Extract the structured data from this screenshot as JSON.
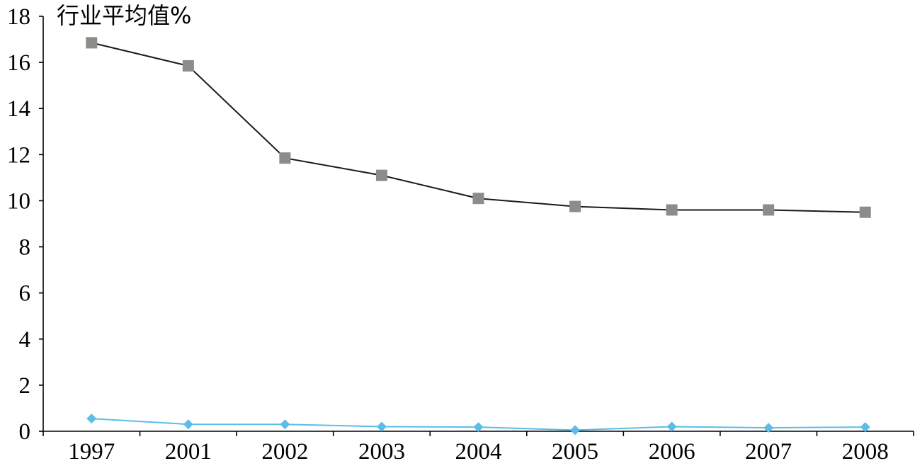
{
  "chart_data": {
    "type": "line",
    "title": "",
    "xlabel": "",
    "ylabel": "行业平均值%",
    "categories": [
      "1997",
      "2001",
      "2002",
      "2003",
      "2004",
      "2005",
      "2006",
      "2007",
      "2008"
    ],
    "ylim": [
      0,
      18
    ],
    "yticks": [
      0,
      2,
      4,
      6,
      8,
      10,
      12,
      14,
      16,
      18
    ],
    "grid": false,
    "legend": "none",
    "series": [
      {
        "values": [
          16.85,
          15.85,
          11.85,
          11.1,
          10.1,
          9.75,
          9.6,
          9.6,
          9.5
        ],
        "line_color": "#1a1a1a",
        "marker": "square",
        "marker_color": "#8c8c88"
      },
      {
        "values": [
          0.55,
          0.3,
          0.3,
          0.2,
          0.18,
          0.05,
          0.2,
          0.15,
          0.18
        ],
        "line_color": "#5bbde8",
        "marker": "diamond",
        "marker_color": "#5bbde8"
      }
    ]
  }
}
